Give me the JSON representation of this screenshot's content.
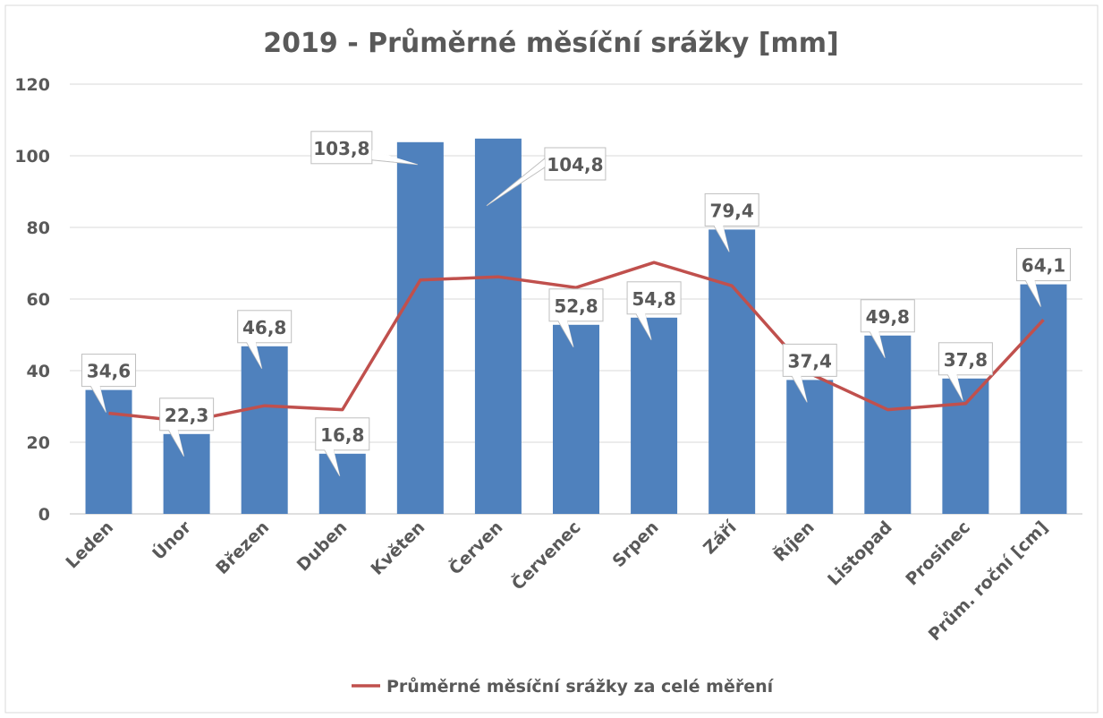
{
  "chart_data": {
    "type": "bar",
    "title": "2019 - Průměrné měsíční srážky [mm]",
    "xlabel": "",
    "ylabel": "",
    "ylim": [
      0,
      120
    ],
    "yticks": [
      0,
      20,
      40,
      60,
      80,
      100,
      120
    ],
    "grid": true,
    "categories": [
      "Leden",
      "Únor",
      "Březen",
      "Duben",
      "Květen",
      "Červen",
      "Červenec",
      "Srpen",
      "Září",
      "Říjen",
      "Listopad",
      "Prosinec",
      "Prům. roční [cm]"
    ],
    "series": [
      {
        "name": "2019",
        "type": "bar",
        "color": "#4F81BD",
        "values": [
          34.6,
          22.3,
          46.8,
          16.8,
          103.8,
          104.8,
          52.8,
          54.8,
          79.4,
          37.4,
          49.8,
          37.8,
          64.1
        ],
        "labels": [
          "34,6",
          "22,3",
          "46,8",
          "16,8",
          "103,8",
          "104,8",
          "52,8",
          "54,8",
          "79,4",
          "37,4",
          "49,8",
          "37,8",
          "64,1"
        ]
      },
      {
        "name": "Průměrné měsíční srážky za celé měření",
        "type": "line",
        "color": "#C0504D",
        "values": [
          28.1,
          25.8,
          30.2,
          29.1,
          65.3,
          66.2,
          63.2,
          70.2,
          63.7,
          39.2,
          29.1,
          30.8,
          54.2
        ]
      }
    ],
    "legend": {
      "position": "bottom",
      "label": "Průměrné měsíční srážky za celé měření"
    }
  }
}
